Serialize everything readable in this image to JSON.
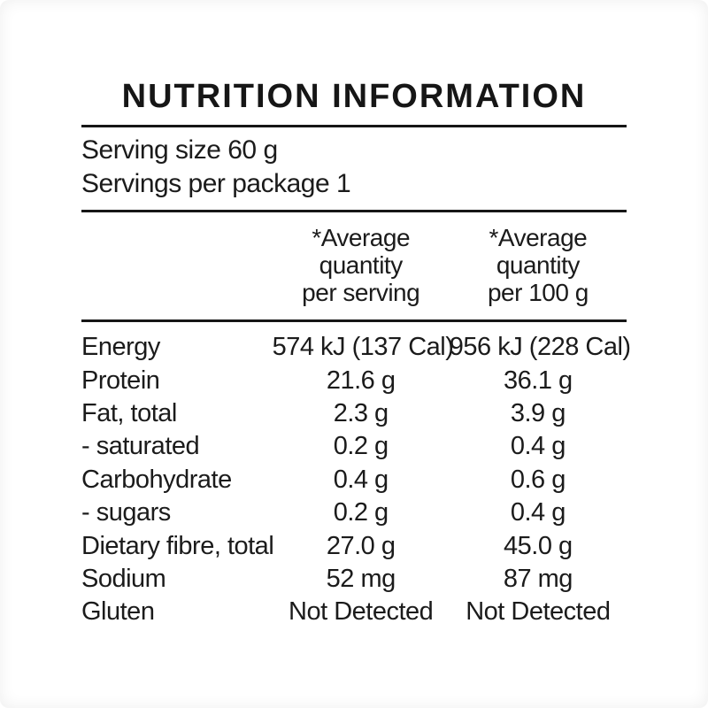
{
  "panel": {
    "title": "NUTRITION INFORMATION",
    "serving_size_line": "Serving size 60 g",
    "servings_per_package_line": "Servings per package 1",
    "column_headers": {
      "per_serving": "*Average\nquantity\nper serving",
      "per_100g": "*Average\nquantity\nper 100 g"
    },
    "rows": [
      {
        "name": "Energy",
        "per_serving": "574 kJ (137 Cal)",
        "per_100g": "956 kJ (228 Cal)"
      },
      {
        "name": "Protein",
        "per_serving": "21.6 g",
        "per_100g": "36.1 g"
      },
      {
        "name": "Fat, total",
        "per_serving": "2.3 g",
        "per_100g": "3.9 g"
      },
      {
        "name": "- saturated",
        "per_serving": "0.2 g",
        "per_100g": "0.4 g"
      },
      {
        "name": "Carbohydrate",
        "per_serving": "0.4 g",
        "per_100g": "0.6 g"
      },
      {
        "name": "- sugars",
        "per_serving": "0.2 g",
        "per_100g": "0.4 g"
      },
      {
        "name": "Dietary fibre, total",
        "per_serving": "27.0 g",
        "per_100g": "45.0 g"
      },
      {
        "name": "Sodium",
        "per_serving": "52 mg",
        "per_100g": "87 mg"
      },
      {
        "name": "Gluten",
        "per_serving": "Not Detected",
        "per_100g": "Not Detected"
      }
    ],
    "colors": {
      "text": "#1b1b1b",
      "rule": "#161616",
      "background": "#ffffff"
    }
  }
}
